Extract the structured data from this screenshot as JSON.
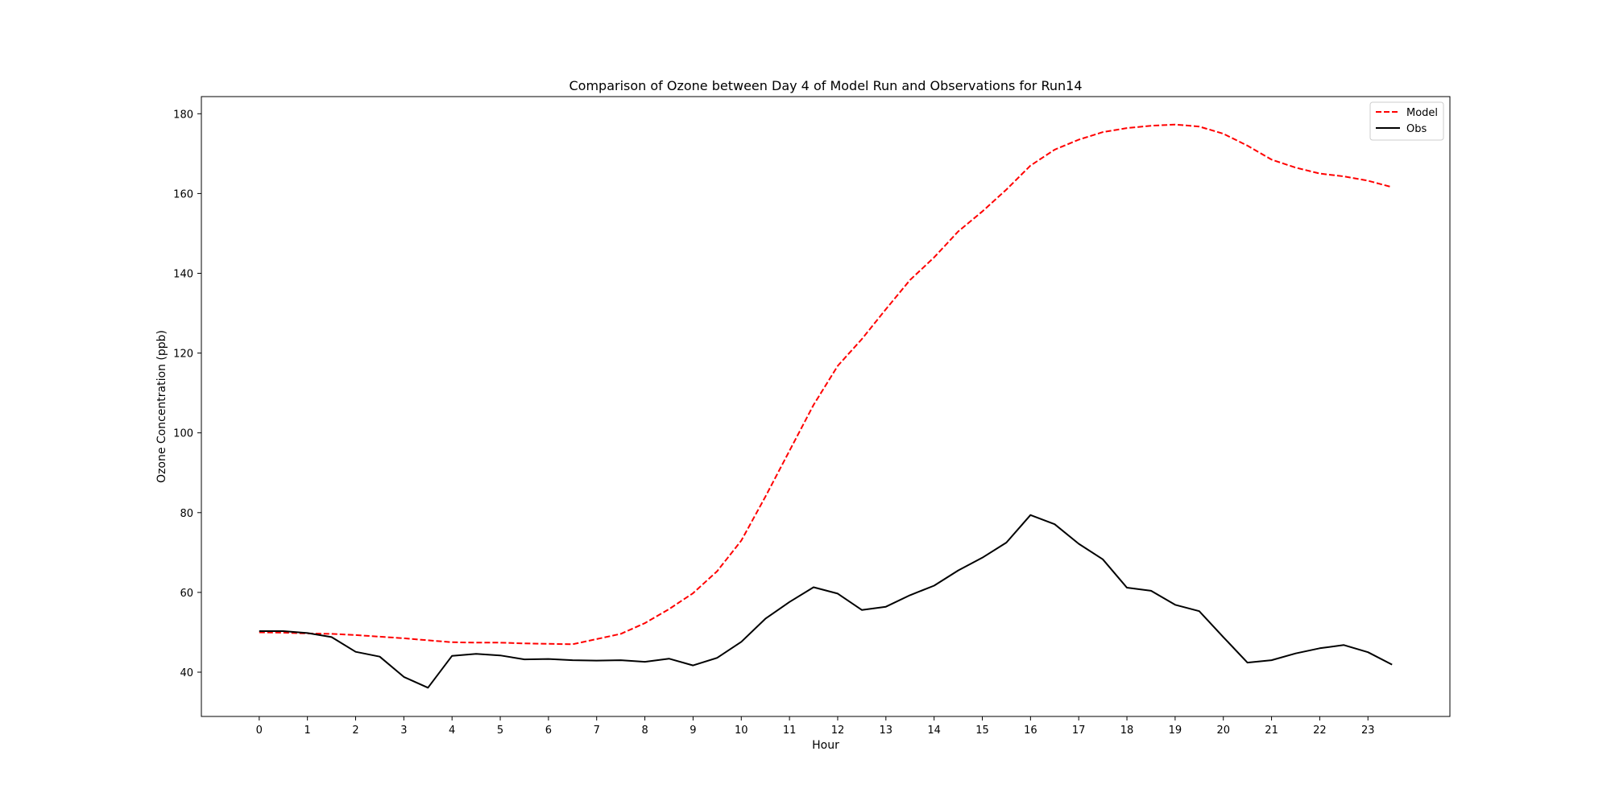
{
  "chart_data": {
    "type": "line",
    "title": "Comparison of Ozone between Day 4 of Model Run and Observations for Run14",
    "xlabel": "Hour",
    "ylabel": "Ozone Concentration (ppb)",
    "xlim": [
      -1.2,
      24.7
    ],
    "ylim": [
      28.9,
      184.3
    ],
    "xticks": [
      0,
      1,
      2,
      3,
      4,
      5,
      6,
      7,
      8,
      9,
      10,
      11,
      12,
      13,
      14,
      15,
      16,
      17,
      18,
      19,
      20,
      21,
      22,
      23
    ],
    "yticks": [
      40,
      60,
      80,
      100,
      120,
      140,
      160,
      180
    ],
    "legend_position": "top-right",
    "grid": false,
    "x": [
      0,
      0.5,
      1,
      1.5,
      2,
      2.5,
      3,
      3.5,
      4,
      4.5,
      5,
      5.5,
      6,
      6.5,
      7,
      7.5,
      8,
      8.5,
      9,
      9.5,
      10,
      10.5,
      11,
      11.5,
      12,
      12.5,
      13,
      13.5,
      14,
      14.5,
      15,
      15.5,
      16,
      16.5,
      17,
      17.5,
      18,
      18.5,
      19,
      19.5,
      20,
      20.5,
      21,
      21.5,
      22,
      22.5,
      23,
      23.5
    ],
    "series": [
      {
        "name": "Model",
        "color": "#ff0000",
        "dash": "dashed",
        "values": [
          50.0,
          49.9,
          49.7,
          49.6,
          49.3,
          48.9,
          48.5,
          48.0,
          47.5,
          47.4,
          47.4,
          47.2,
          47.1,
          47.0,
          48.3,
          49.6,
          52.3,
          55.8,
          59.8,
          65.3,
          73.0,
          84.0,
          95.5,
          107.0,
          116.8,
          123.5,
          131.0,
          138.3,
          144.0,
          150.5,
          155.5,
          161.0,
          167.0,
          171.0,
          173.5,
          175.4,
          176.4,
          177.0,
          177.3,
          176.8,
          175.0,
          172.0,
          168.5,
          166.5,
          165.0,
          164.3,
          163.2,
          161.6
        ]
      },
      {
        "name": "Obs",
        "color": "#000000",
        "dash": "solid",
        "values": [
          50.3,
          50.3,
          49.8,
          48.8,
          45.1,
          43.9,
          38.8,
          36.1,
          44.1,
          44.6,
          44.2,
          43.2,
          43.3,
          43.0,
          42.9,
          43.0,
          42.6,
          43.4,
          41.7,
          43.6,
          47.6,
          53.4,
          57.6,
          61.3,
          59.7,
          55.6,
          56.4,
          59.3,
          61.7,
          65.5,
          68.7,
          72.5,
          79.4,
          77.1,
          72.2,
          68.3,
          61.2,
          60.4,
          56.9,
          55.3,
          48.8,
          42.4,
          43.0,
          44.7,
          46.0,
          46.8,
          45.0,
          41.9
        ]
      }
    ]
  }
}
